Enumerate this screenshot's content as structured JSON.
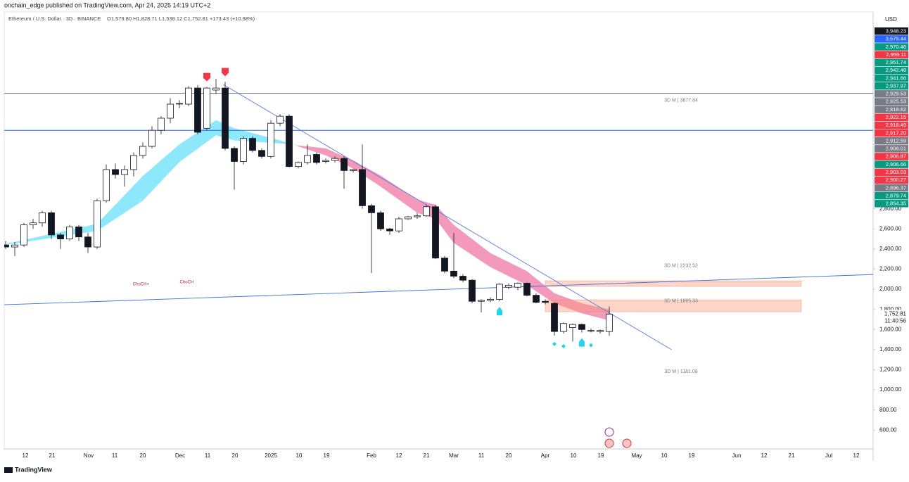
{
  "header": "onchain_edge published on TradingView.com, Apr 24, 2025 14:19 UTC+2",
  "legend": {
    "symbol": "Ethereum / U.S. Dollar · 3D · BINANCE",
    "ohlc": "O1,579.80  H1,828.71  L1,538.12  C1,752.81  +173.43 (+10.98%)"
  },
  "currency": "USD",
  "brand": "TradingView",
  "chart_data": {
    "type": "candlestick",
    "open": [
      2440,
      2420,
      2440,
      2640,
      2660,
      2760,
      2540,
      2500,
      2620,
      2520,
      2420,
      2880,
      3190,
      3140,
      3190,
      3330,
      3420,
      3580,
      3700,
      3840,
      3840,
      4000,
      3600,
      3980,
      4000,
      3400,
      3270,
      3500,
      3380,
      3320,
      3650,
      3720,
      3220,
      3260,
      3340,
      3270,
      3280,
      3300,
      3180,
      3190,
      2830,
      2760,
      2600,
      2580,
      2700,
      2720,
      2730,
      2820,
      2310,
      2180,
      2130,
      2090,
      1880,
      1890,
      1900,
      2020,
      2020,
      2060,
      1940,
      1880,
      1860,
      1580,
      1620,
      1650,
      1590,
      1580,
      1579.8
    ],
    "high": [
      2480,
      2470,
      2660,
      2700,
      2780,
      2780,
      2560,
      2640,
      2640,
      2560,
      2900,
      3240,
      3250,
      3230,
      3360,
      3460,
      3620,
      3720,
      3900,
      3880,
      4020,
      4030,
      4010,
      4090,
      4060,
      3420,
      3520,
      3520,
      3400,
      3680,
      3740,
      3740,
      3270,
      3440,
      3360,
      3300,
      3320,
      3320,
      3200,
      3440,
      2850,
      2780,
      2610,
      2720,
      2730,
      2760,
      2840,
      2840,
      2330,
      2560,
      2150,
      2100,
      1900,
      1920,
      2060,
      2060,
      2070,
      2070,
      1960,
      1900,
      1870,
      1670,
      1660,
      1660,
      1610,
      1600,
      1828.71
    ],
    "low": [
      2400,
      2330,
      2420,
      2600,
      2620,
      2500,
      2400,
      2480,
      2480,
      2360,
      2400,
      2860,
      3100,
      3020,
      3120,
      3300,
      3400,
      3540,
      3650,
      3800,
      3820,
      3540,
      3580,
      3940,
      3380,
      2990,
      3240,
      3360,
      3300,
      3300,
      3620,
      3210,
      3200,
      3240,
      3240,
      3250,
      3260,
      3000,
      3160,
      2800,
      2160,
      2580,
      2540,
      2560,
      2690,
      2700,
      2720,
      2300,
      2160,
      2110,
      2070,
      1860,
      1770,
      1870,
      1880,
      2000,
      1990,
      1930,
      1860,
      1850,
      1540,
      1560,
      1480,
      1570,
      1570,
      1560,
      1538.12
    ],
    "close": [
      2420,
      2440,
      2640,
      2660,
      2760,
      2540,
      2500,
      2620,
      2520,
      2420,
      2880,
      3190,
      3140,
      3190,
      3330,
      3420,
      3580,
      3700,
      3840,
      3846,
      4000,
      3560,
      4000,
      4000,
      3400,
      3270,
      3500,
      3380,
      3320,
      3650,
      3720,
      3220,
      3260,
      3330,
      3260,
      3280,
      3300,
      3180,
      3190,
      2830,
      2760,
      2600,
      2580,
      2700,
      2720,
      2730,
      2820,
      2310,
      2180,
      2130,
      2090,
      1880,
      1890,
      1900,
      2050,
      2040,
      2060,
      1940,
      1870,
      1870,
      1580,
      1660,
      1650,
      1600,
      1590,
      1590,
      1752.81
    ],
    "ribbon": {
      "x": [
        0,
        10,
        15,
        19,
        23,
        25,
        30,
        32,
        35,
        38,
        41,
        45,
        47,
        49,
        53,
        57,
        60,
        63,
        66
      ],
      "fast": [
        2450,
        2650,
        3126,
        3440,
        3680,
        3600,
        3480,
        3420,
        3330,
        3200,
        3020,
        2760,
        2700,
        2460,
        2220,
        2040,
        1860,
        1760,
        1690
      ],
      "slow": [
        2440,
        2580,
        2880,
        3265,
        3530,
        3480,
        3450,
        3430,
        3400,
        3280,
        3130,
        2890,
        2840,
        2640,
        2360,
        2180,
        1960,
        1860,
        1800
      ],
      "colors": [
        "#8ee8fb",
        "#f39abb"
      ]
    },
    "trendlines": [
      {
        "x": [
          23.8,
          72.8
        ],
        "y": [
          4035,
          1400
        ],
        "color": "#5b7fe0"
      },
      {
        "x": [
          -0.2,
          95
        ],
        "y": [
          1846,
          2147
        ],
        "color": "#3f6ed8"
      }
    ],
    "hlines": [
      {
        "value": 3948.23,
        "color": "#787b86"
      },
      {
        "value": 3579.44,
        "color": "#2962ff"
      }
    ],
    "zones": [
      {
        "x": [
          59,
          87
        ],
        "y": [
          2028,
          2084
        ]
      },
      {
        "x": [
          59,
          87
        ],
        "y": [
          1776,
          1895
        ]
      }
    ],
    "levels": [
      {
        "label": "3D M | 3877.84",
        "value": 3877.84
      },
      {
        "label": "3D M | 2232.52",
        "value": 2232.52
      },
      {
        "label": "3D M | 1885.33",
        "value": 1885.33
      },
      {
        "label": "3D M | 1181.08",
        "value": 1181.08
      }
    ],
    "sell_signals": [
      22,
      24
    ],
    "buy_signals": [
      54,
      63
    ],
    "diamonds": [
      60,
      61,
      63,
      64
    ],
    "annotations": [
      {
        "text": "ChoCH+",
        "x": 14.8,
        "y": 2050
      },
      {
        "text": "ChoCH",
        "x": 19.8,
        "y": 2070
      }
    ],
    "time_labels": [
      "12",
      "21",
      "Nov",
      "11",
      "20",
      "Dec",
      "11",
      "20",
      "2025",
      "10",
      "19",
      "Feb",
      "12",
      "21",
      "Mar",
      "11",
      "20",
      "Apr",
      "10",
      "19",
      "May",
      "10",
      "19",
      "Jun",
      "12",
      "21",
      "Jul",
      "12"
    ],
    "ylim": [
      413,
      4770
    ],
    "yticks": [
      {
        "value": 600,
        "label": "600.00"
      },
      {
        "value": 800,
        "label": "800.00"
      },
      {
        "value": 1000,
        "label": "1,000.00"
      },
      {
        "value": 1200,
        "label": "1,200.00"
      },
      {
        "value": 1400,
        "label": "1,400.00"
      },
      {
        "value": 1600,
        "label": "1,600.00"
      },
      {
        "value": 1800,
        "label": "1,800.00"
      },
      {
        "value": 2000,
        "label": "2,000.00"
      },
      {
        "value": 2200,
        "label": "2,200.00"
      },
      {
        "value": 2400,
        "label": "2,400.00"
      },
      {
        "value": 2600,
        "label": "2,600.00"
      },
      {
        "value": 2800,
        "label": "2,800.00"
      }
    ],
    "price_labels": [
      {
        "value": 3948.23,
        "label": "3,948.23",
        "color": "#131722"
      },
      {
        "value": 3579.44,
        "label": "3,579.44",
        "color": "#2962ff"
      },
      {
        "value": 2970.46,
        "label": "2,970.46",
        "color": "#089981"
      },
      {
        "value": 2959.11,
        "label": "2,959.11",
        "color": "#f23645"
      },
      {
        "value": 2951.74,
        "label": "2,951.74",
        "color": "#089981"
      },
      {
        "value": 2942.48,
        "label": "2,942.48",
        "color": "#089981"
      },
      {
        "value": 2941.66,
        "label": "2,941.66",
        "color": "#089981"
      },
      {
        "value": 2937.97,
        "label": "2,937.97",
        "color": "#089981"
      },
      {
        "value": 2929.53,
        "label": "2,929.53",
        "color": "#787b86"
      },
      {
        "value": 2925.53,
        "label": "2,925.53",
        "color": "#787b86"
      },
      {
        "value": 2918.62,
        "label": "2,918.62",
        "color": "#787b86"
      },
      {
        "value": 2922.15,
        "label": "2,922.15",
        "color": "#f23645"
      },
      {
        "value": 2918.49,
        "label": "2,918.49",
        "color": "#f23645"
      },
      {
        "value": 2917.2,
        "label": "2,917.20",
        "color": "#f23645"
      },
      {
        "value": 2912.59,
        "label": "2,912.59",
        "color": "#787b86"
      },
      {
        "value": 2908.01,
        "label": "2,908.01",
        "color": "#787b86"
      },
      {
        "value": 2906.87,
        "label": "2,906.87",
        "color": "#f23645"
      },
      {
        "value": 2906.66,
        "label": "2,906.66",
        "color": "#089981"
      },
      {
        "value": 2903.03,
        "label": "2,903.03",
        "color": "#f23645"
      },
      {
        "value": 2900.27,
        "label": "2,900.27",
        "color": "#f23645"
      },
      {
        "value": 2896.37,
        "label": "2,896.37",
        "color": "#787b86"
      },
      {
        "value": 2879.74,
        "label": "2,879.74",
        "color": "#089981"
      },
      {
        "value": 2854.35,
        "label": "2,854.35",
        "color": "#089981"
      }
    ],
    "last_price": {
      "value": 1752.81,
      "label": "1,752.81",
      "countdown": "11:40:56"
    }
  }
}
